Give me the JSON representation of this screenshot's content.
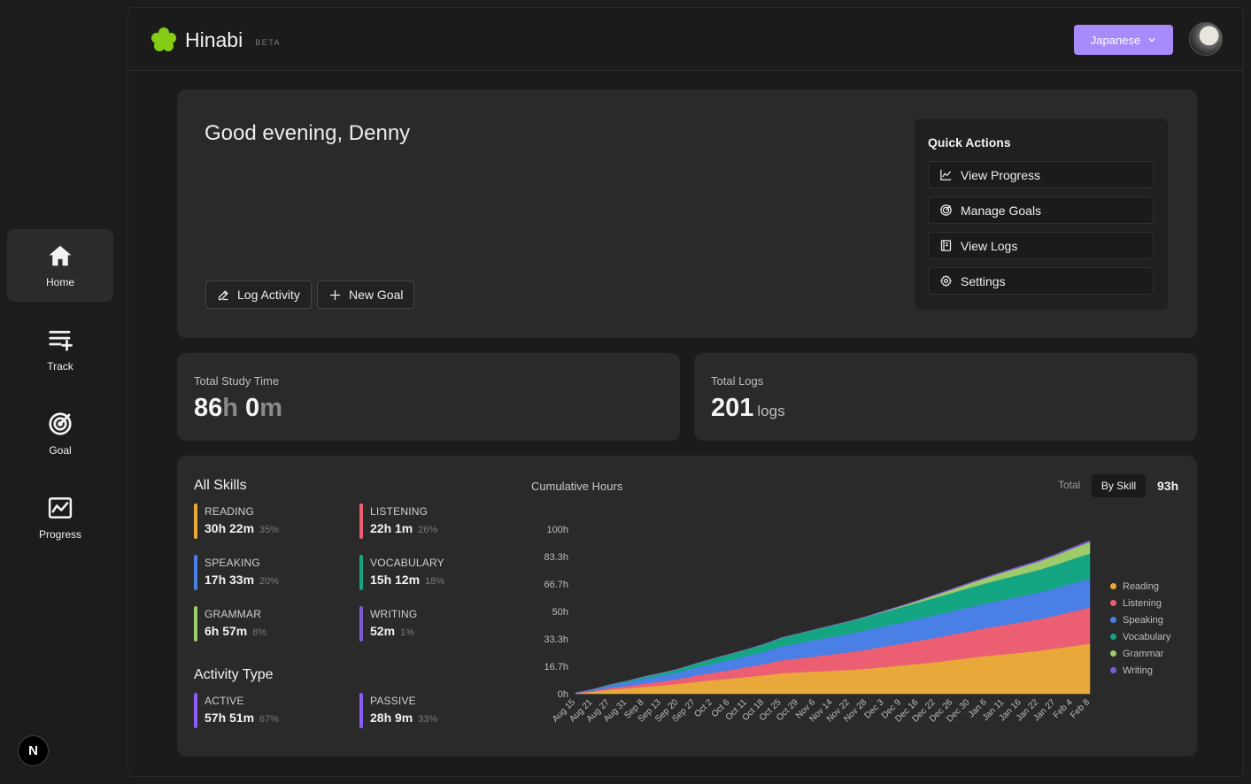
{
  "sidebar": {
    "items": [
      {
        "label": "Home",
        "icon": "home-icon",
        "active": true
      },
      {
        "label": "Track",
        "icon": "track-list-icon",
        "active": false
      },
      {
        "label": "Goal",
        "icon": "target-icon",
        "active": false
      },
      {
        "label": "Progress",
        "icon": "chart-icon",
        "active": false
      }
    ],
    "badge": "N"
  },
  "header": {
    "app_name": "Hinabi",
    "beta": "BETA",
    "language": "Japanese",
    "brand_color": "#84cc16",
    "accent_color": "#a78bfa"
  },
  "welcome": {
    "greeting": "Good evening, Denny",
    "log_activity": "Log Activity",
    "new_goal": "New Goal"
  },
  "quick_actions": {
    "title": "Quick Actions",
    "items": [
      {
        "label": "View Progress",
        "icon": "line-chart-icon"
      },
      {
        "label": "Manage Goals",
        "icon": "target-icon"
      },
      {
        "label": "View Logs",
        "icon": "log-book-icon"
      },
      {
        "label": "Settings",
        "icon": "gear-icon"
      }
    ]
  },
  "stats": {
    "study_time": {
      "label": "Total Study Time",
      "hours": "86",
      "h": "h",
      "minutes": "0",
      "m": "m"
    },
    "logs": {
      "label": "Total Logs",
      "value": "201",
      "unit": "logs"
    }
  },
  "skills": {
    "title": "All Skills",
    "items": [
      {
        "name": "READING",
        "time": "30h 22m",
        "pct": "35%",
        "color": "#e9a93a"
      },
      {
        "name": "LISTENING",
        "time": "22h 1m",
        "pct": "26%",
        "color": "#ec5f73"
      },
      {
        "name": "SPEAKING",
        "time": "17h 33m",
        "pct": "20%",
        "color": "#4a7fe6"
      },
      {
        "name": "VOCABULARY",
        "time": "15h 12m",
        "pct": "18%",
        "color": "#14a583"
      },
      {
        "name": "GRAMMAR",
        "time": "6h 57m",
        "pct": "8%",
        "color": "#9fcc6a"
      },
      {
        "name": "WRITING",
        "time": "52m",
        "pct": "1%",
        "color": "#7d5bd3"
      }
    ]
  },
  "activity": {
    "title": "Activity Type",
    "items": [
      {
        "name": "ACTIVE",
        "time": "57h 51m",
        "pct": "67%",
        "color": "#8b5cf6"
      },
      {
        "name": "PASSIVE",
        "time": "28h 9m",
        "pct": "33%",
        "color": "#8b5cf6"
      }
    ]
  },
  "chart_data": {
    "type": "area",
    "title": "Cumulative Hours",
    "toggle": {
      "total": "Total",
      "by_skill": "By Skill",
      "selected": "By Skill"
    },
    "total_label": "93h",
    "stacked": true,
    "legend_position": "right",
    "ylim": [
      0,
      100
    ],
    "y_ticks": [
      "0h",
      "16.7h",
      "33.3h",
      "50h",
      "66.7h",
      "83.3h",
      "100h"
    ],
    "x": [
      "Aug 15",
      "Aug 21",
      "Aug 27",
      "Aug 31",
      "Sep 8",
      "Sep 13",
      "Sep 20",
      "Sep 27",
      "Oct 2",
      "Oct 6",
      "Oct 11",
      "Oct 18",
      "Oct 25",
      "Oct 29",
      "Nov 6",
      "Nov 14",
      "Nov 22",
      "Nov 28",
      "Dec 3",
      "Dec 9",
      "Dec 16",
      "Dec 22",
      "Dec 26",
      "Dec 30",
      "Jan 6",
      "Jan 11",
      "Jan 16",
      "Jan 22",
      "Jan 27",
      "Feb 4",
      "Feb 8"
    ],
    "series": [
      {
        "name": "Reading",
        "color": "#e9a93a",
        "values": [
          0.3,
          1.2,
          2.5,
          3.2,
          4.2,
          5.0,
          6.0,
          7.2,
          8.3,
          9.2,
          10.2,
          11.2,
          12.5,
          13.0,
          13.5,
          14.0,
          14.5,
          15.2,
          16.2,
          17.2,
          18.2,
          19.2,
          20.5,
          21.8,
          23.0,
          24.0,
          25.0,
          26.0,
          27.5,
          29.0,
          30.4
        ]
      },
      {
        "name": "Listening",
        "color": "#ec5f73",
        "values": [
          0.1,
          0.5,
          1.0,
          1.5,
          2.0,
          2.5,
          3.0,
          3.8,
          4.5,
          5.2,
          6.0,
          6.8,
          7.8,
          8.5,
          9.2,
          10.0,
          10.8,
          11.6,
          12.5,
          13.2,
          14.0,
          14.8,
          15.5,
          16.2,
          17.0,
          17.8,
          18.5,
          19.2,
          20.0,
          21.0,
          22.0
        ]
      },
      {
        "name": "Speaking",
        "color": "#4a7fe6",
        "values": [
          0.1,
          0.7,
          1.5,
          2.2,
          3.0,
          3.5,
          4.0,
          4.8,
          5.5,
          6.2,
          6.8,
          7.5,
          8.5,
          9.2,
          10.0,
          10.6,
          11.2,
          11.8,
          12.3,
          12.8,
          13.3,
          13.8,
          14.2,
          14.6,
          15.0,
          15.4,
          15.8,
          16.2,
          16.6,
          17.1,
          17.6
        ]
      },
      {
        "name": "Vocabulary",
        "color": "#14a583",
        "values": [
          0,
          0.2,
          0.5,
          0.8,
          1.2,
          1.6,
          2.0,
          2.5,
          3.0,
          3.5,
          4.0,
          4.6,
          5.2,
          5.8,
          6.4,
          7.0,
          7.6,
          8.2,
          8.8,
          9.4,
          10.0,
          10.6,
          11.2,
          11.8,
          12.3,
          12.8,
          13.3,
          13.8,
          14.3,
          14.8,
          15.2
        ]
      },
      {
        "name": "Grammar",
        "color": "#9fcc6a",
        "values": [
          0,
          0,
          0,
          0,
          0,
          0,
          0,
          0,
          0,
          0,
          0,
          0,
          0,
          0,
          0,
          0,
          0,
          0.1,
          0.3,
          0.6,
          1.0,
          1.5,
          2.0,
          2.6,
          3.2,
          3.8,
          4.4,
          5.0,
          5.6,
          6.3,
          7.0
        ]
      },
      {
        "name": "Writing",
        "color": "#7d5bd3",
        "values": [
          0,
          0,
          0,
          0,
          0,
          0,
          0,
          0,
          0,
          0,
          0,
          0,
          0,
          0,
          0,
          0,
          0.1,
          0.2,
          0.3,
          0.35,
          0.4,
          0.45,
          0.5,
          0.55,
          0.6,
          0.65,
          0.7,
          0.75,
          0.8,
          0.85,
          0.87
        ]
      }
    ]
  }
}
